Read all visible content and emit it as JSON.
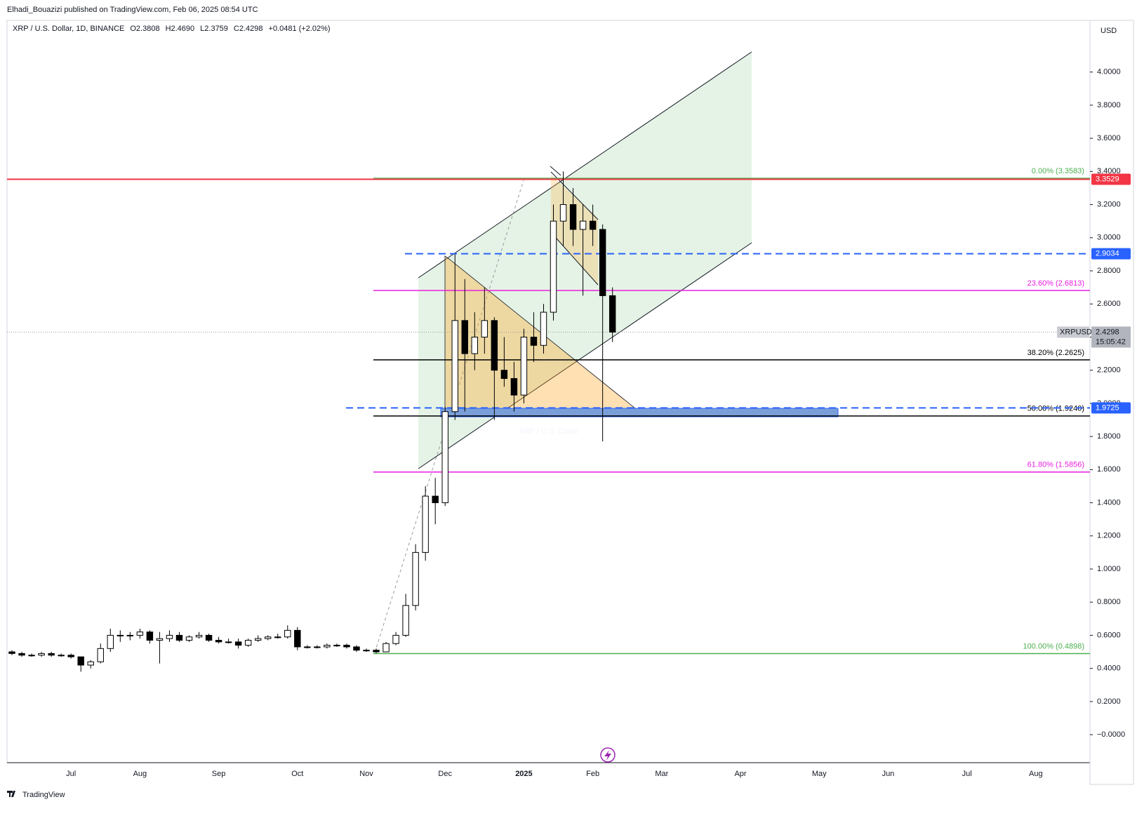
{
  "header": {
    "byline": "Elhadi_Bouazizi published on TradingView.com, Feb 06, 2025 08:54 UTC",
    "symbol": "XRP / U.S. Dollar, 1D, BINANCE",
    "ohlc": [
      "O2.3808",
      "H2.4690",
      "L2.3759",
      "C2.4298"
    ],
    "change": "+0.0481 (+2.02%)"
  },
  "footer": "TradingView",
  "chart_data": {
    "type": "candlestick",
    "currency": "USD",
    "watermark": [
      "XRPUSD, 1D",
      "XRP / U.S. Dollar"
    ],
    "categories": [
      null,
      null,
      null,
      null,
      null,
      null,
      "Jul",
      null,
      null,
      null,
      null,
      null,
      null,
      "Aug",
      null,
      null,
      null,
      null,
      null,
      null,
      null,
      "Sep",
      null,
      null,
      null,
      null,
      null,
      null,
      null,
      "Oct",
      null,
      null,
      null,
      null,
      null,
      null,
      "Nov",
      null,
      null,
      null,
      null,
      null,
      null,
      null,
      "Dec",
      null,
      null,
      null,
      null,
      null,
      null,
      null,
      "2025",
      null,
      null,
      null,
      null,
      null,
      null,
      "Feb",
      null,
      null,
      null,
      null,
      null,
      null,
      "Mar",
      null,
      null,
      null,
      null,
      null,
      null,
      null,
      "Apr",
      null,
      null,
      null,
      null,
      null,
      null,
      null,
      "May",
      null,
      null,
      null,
      null,
      null,
      null,
      "Jun",
      null,
      null,
      null,
      null,
      null,
      null,
      null,
      "Jul",
      null,
      null,
      null,
      null,
      null,
      null,
      "Aug",
      null,
      null,
      null,
      null,
      null
    ],
    "open": [
      0.5,
      0.49,
      0.48,
      0.48,
      0.49,
      0.48,
      0.48,
      0.47,
      0.42,
      0.44,
      0.52,
      0.6,
      0.6,
      0.6,
      0.62,
      0.57,
      0.58,
      0.6,
      0.57,
      0.59,
      0.6,
      0.57,
      0.56,
      0.56,
      0.54,
      0.57,
      0.58,
      0.59,
      0.59,
      0.63,
      0.53,
      0.53,
      0.53,
      0.54,
      0.54,
      0.53,
      0.51,
      0.51,
      0.5,
      0.55,
      0.6,
      0.78,
      1.1,
      1.44,
      1.4,
      1.95,
      2.5,
      2.3,
      2.4,
      2.5,
      2.2,
      2.15,
      2.05,
      2.4,
      2.35,
      2.55,
      3.1,
      3.2,
      3.05,
      3.1,
      3.05,
      2.65,
      null,
      null,
      null,
      null,
      null,
      null,
      null,
      null,
      null,
      null,
      null,
      null,
      null,
      null,
      null,
      null,
      null,
      null,
      null,
      null,
      null,
      null,
      null,
      null,
      null,
      null,
      null,
      null,
      null,
      null,
      null,
      null,
      null,
      null,
      null,
      null,
      null,
      null,
      null,
      null,
      null,
      null,
      null,
      null,
      null,
      null,
      null,
      null
    ],
    "high": [
      0.51,
      0.5,
      0.49,
      0.5,
      0.5,
      0.49,
      0.49,
      0.47,
      0.45,
      0.55,
      0.64,
      0.63,
      0.62,
      0.64,
      0.63,
      0.62,
      0.63,
      0.62,
      0.6,
      0.62,
      0.61,
      0.59,
      0.58,
      0.58,
      0.58,
      0.6,
      0.6,
      0.61,
      0.66,
      0.65,
      0.54,
      0.54,
      0.55,
      0.55,
      0.55,
      0.54,
      0.52,
      0.52,
      0.56,
      0.62,
      0.85,
      1.15,
      1.5,
      1.55,
      1.98,
      2.9,
      2.75,
      2.55,
      2.7,
      2.52,
      2.4,
      2.25,
      2.45,
      2.55,
      2.6,
      3.2,
      3.4,
      3.3,
      3.2,
      3.2,
      3.08,
      2.7,
      null,
      null,
      null,
      null,
      null,
      null,
      null,
      null,
      null,
      null,
      null,
      null,
      null,
      null,
      null,
      null,
      null,
      null,
      null,
      null,
      null,
      null,
      null,
      null,
      null,
      null,
      null,
      null,
      null,
      null,
      null,
      null,
      null,
      null,
      null,
      null,
      null,
      null,
      null,
      null,
      null,
      null,
      null,
      null,
      null,
      null,
      null,
      null
    ],
    "low": [
      0.48,
      0.47,
      0.47,
      0.47,
      0.47,
      0.47,
      0.46,
      0.38,
      0.4,
      0.43,
      0.5,
      0.56,
      0.57,
      0.58,
      0.55,
      0.43,
      0.56,
      0.56,
      0.56,
      0.58,
      0.56,
      0.55,
      0.55,
      0.52,
      0.53,
      0.56,
      0.57,
      0.58,
      0.58,
      0.51,
      0.52,
      0.52,
      0.52,
      0.53,
      0.52,
      0.5,
      0.5,
      0.49,
      0.5,
      0.54,
      0.59,
      0.75,
      1.05,
      1.27,
      1.38,
      1.9,
      1.95,
      2.2,
      2.3,
      1.9,
      2.1,
      1.95,
      2.0,
      2.25,
      2.3,
      2.5,
      2.95,
      2.95,
      2.65,
      2.95,
      1.77,
      2.37,
      null,
      null,
      null,
      null,
      null,
      null,
      null,
      null,
      null,
      null,
      null,
      null,
      null,
      null,
      null,
      null,
      null,
      null,
      null,
      null,
      null,
      null,
      null,
      null,
      null,
      null,
      null,
      null,
      null,
      null,
      null,
      null,
      null,
      null,
      null,
      null,
      null,
      null,
      null,
      null,
      null,
      null,
      null,
      null,
      null,
      null,
      null,
      null
    ],
    "close": [
      0.49,
      0.48,
      0.48,
      0.49,
      0.48,
      0.48,
      0.47,
      0.42,
      0.44,
      0.52,
      0.6,
      0.6,
      0.6,
      0.62,
      0.57,
      0.58,
      0.6,
      0.57,
      0.59,
      0.6,
      0.57,
      0.56,
      0.56,
      0.54,
      0.57,
      0.58,
      0.59,
      0.59,
      0.63,
      0.53,
      0.53,
      0.53,
      0.54,
      0.54,
      0.53,
      0.51,
      0.51,
      0.5,
      0.55,
      0.6,
      0.78,
      1.1,
      1.44,
      1.4,
      1.95,
      2.5,
      2.3,
      2.4,
      2.5,
      2.2,
      2.15,
      2.05,
      2.4,
      2.35,
      2.55,
      3.1,
      3.2,
      3.05,
      3.1,
      3.05,
      2.65,
      2.43,
      null,
      null,
      null,
      null,
      null,
      null,
      null,
      null,
      null,
      null,
      null,
      null,
      null,
      null,
      null,
      null,
      null,
      null,
      null,
      null,
      null,
      null,
      null,
      null,
      null,
      null,
      null,
      null,
      null,
      null,
      null,
      null,
      null,
      null,
      null,
      null,
      null,
      null,
      null,
      null,
      null,
      null,
      null,
      null,
      null,
      null,
      null,
      null
    ],
    "up_color": "#ffffff",
    "down_color": "#000000",
    "wick_color": "#000000",
    "ylim": [
      -0.169,
      4.312
    ],
    "yticks": [
      {
        "value": 0,
        "label": "−0.0000"
      },
      {
        "value": 0.2,
        "label": "0.2000"
      },
      {
        "value": 0.4,
        "label": "0.4000"
      },
      {
        "value": 0.6,
        "label": "0.6000"
      },
      {
        "value": 0.8,
        "label": "0.8000"
      },
      {
        "value": 1,
        "label": "1.0000"
      },
      {
        "value": 1.2,
        "label": "1.2000"
      },
      {
        "value": 1.4,
        "label": "1.4000"
      },
      {
        "value": 1.6,
        "label": "1.6000"
      },
      {
        "value": 1.8,
        "label": "1.8000"
      },
      {
        "value": 2,
        "label": "2.0000"
      },
      {
        "value": 2.2,
        "label": "2.2000"
      },
      {
        "value": 2.4,
        "label": "2.4000"
      },
      {
        "value": 2.6,
        "label": "2.6000"
      },
      {
        "value": 2.8,
        "label": "2.8000"
      },
      {
        "value": 3,
        "label": "3.0000"
      },
      {
        "value": 3.2,
        "label": "3.2000"
      },
      {
        "value": 3.4,
        "label": "3.4000"
      },
      {
        "value": 3.6,
        "label": "3.6000"
      },
      {
        "value": 3.8,
        "label": "3.8000"
      },
      {
        "value": 4,
        "label": "4.0000"
      }
    ],
    "grid": false,
    "fib_levels": [
      {
        "value": 3.3583,
        "label": "0.00% (3.3583)",
        "color": "#4caf50"
      },
      {
        "value": 2.6813,
        "label": "23.60% (2.6813)",
        "color": "#e91ee0"
      },
      {
        "value": 2.2625,
        "label": "38.20% (2.2625)",
        "color": "#000000"
      },
      {
        "value": 1.924,
        "label": "50.00% (1.9240)",
        "color": "#000000"
      },
      {
        "value": 1.5856,
        "label": "61.80% (1.5856)",
        "color": "#e91ee0"
      },
      {
        "value": 0.4898,
        "label": "100.00% (0.4898)",
        "color": "#4caf50"
      }
    ],
    "hlines": [
      {
        "value": 3.3529,
        "color": "#f23645",
        "style": "solid"
      },
      {
        "value": 2.9034,
        "color": "#2962ff",
        "style": "dashed"
      },
      {
        "value": 1.9725,
        "color": "#2962ff",
        "style": "dashed"
      }
    ],
    "current_price": {
      "symbol": "XRPUSD",
      "value": 2.4298,
      "countdown": "15:05:42"
    }
  }
}
